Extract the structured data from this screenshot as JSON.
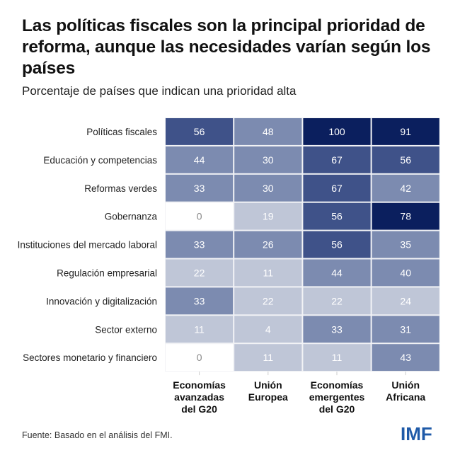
{
  "title": "Las políticas fiscales son la principal prioridad de reforma, aunque las necesidades varían según los países",
  "subtitle": "Porcentaje de países que indican una prioridad alta",
  "source": "Fuente: Basado en el análisis del FMI.",
  "logo": "IMF",
  "colors": {
    "zero": "#ffffff",
    "low": "#bfc6d7",
    "mid": "#7c8bb0",
    "high": "#3f5289",
    "top": "#0b1f5e",
    "zero_text": "#888888",
    "text": "#ffffff"
  },
  "chart_data": {
    "type": "heatmap",
    "title": "Las políticas fiscales son la principal prioridad de reforma, aunque las necesidades varían según los países",
    "subtitle": "Porcentaje de países que indican una prioridad alta",
    "rows": [
      "Políticas fiscales",
      "Educación y competencias",
      "Reformas verdes",
      "Gobernanza",
      "Instituciones del mercado laboral",
      "Regulación empresarial",
      "Innovación y digitalización",
      "Sector externo",
      "Sectores monetario y financiero"
    ],
    "columns": [
      [
        "Economías",
        "avanzadas",
        "del G20"
      ],
      [
        "Unión",
        "Europea"
      ],
      [
        "Economías",
        "emergentes",
        "del G20"
      ],
      [
        "Unión",
        "Africana"
      ]
    ],
    "values": [
      [
        56,
        48,
        100,
        91
      ],
      [
        44,
        30,
        67,
        56
      ],
      [
        33,
        30,
        67,
        42
      ],
      [
        0,
        19,
        56,
        78
      ],
      [
        33,
        26,
        56,
        35
      ],
      [
        22,
        11,
        44,
        40
      ],
      [
        33,
        22,
        22,
        24
      ],
      [
        11,
        4,
        33,
        31
      ],
      [
        0,
        11,
        11,
        43
      ]
    ],
    "bins": [
      0,
      25,
      50,
      75,
      100
    ]
  }
}
